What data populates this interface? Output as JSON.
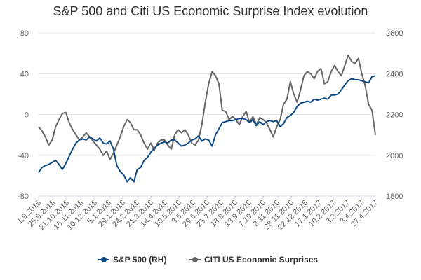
{
  "chart_data": {
    "type": "line",
    "title": "S&P 500 and Citi US Economic Surprise Index evolution",
    "x_tick_labels": [
      "1.9.2015",
      "25.9.2015",
      "21.10.2015",
      "16.11.2015",
      "10.12.2015",
      "5.1.2016",
      "29.1.2016",
      "24.2.2016",
      "21.3.2016",
      "14.4.2016",
      "10.5.2016",
      "3.6.2016",
      "29.6.2016",
      "25.7.2016",
      "18.8.2016",
      "13.9.2016",
      "7.10.2016",
      "2.11.2016",
      "28.11.2016",
      "22.12.2016",
      "17.1.2017",
      "10.2.2017",
      "8.3.2017",
      "3.4.2017",
      "27.4.2017"
    ],
    "y_left_ticks": [
      80,
      40,
      0,
      -40,
      -80
    ],
    "y_left_lim": [
      -80,
      80
    ],
    "y_right_ticks": [
      2600,
      2400,
      2200,
      2000,
      1800
    ],
    "y_right_lim": [
      1800,
      2600
    ],
    "grid": "horizontal",
    "legend_position": "bottom",
    "series": [
      {
        "name": "S&P 500 (RH)",
        "axis": "right",
        "color": "#0d4a85",
        "values": [
          1915,
          1940,
          1950,
          1955,
          1965,
          1975,
          1955,
          1930,
          1960,
          1995,
          2030,
          2060,
          2075,
          2080,
          2075,
          2090,
          2080,
          2070,
          2085,
          2060,
          2055,
          2070,
          2030,
          1950,
          1920,
          1905,
          1870,
          1890,
          1870,
          1930,
          1940,
          1975,
          1990,
          2015,
          2035,
          2050,
          2060,
          2065,
          2060,
          2075,
          2075,
          2060,
          2045,
          2050,
          2060,
          2075,
          2080,
          2095,
          2070,
          2080,
          2075,
          2045,
          2100,
          2130,
          2160,
          2165,
          2170,
          2170,
          2175,
          2180,
          2180,
          2175,
          2160,
          2175,
          2145,
          2165,
          2150,
          2165,
          2170,
          2165,
          2170,
          2140,
          2155,
          2185,
          2195,
          2210,
          2240,
          2255,
          2260,
          2265,
          2260,
          2275,
          2270,
          2275,
          2280,
          2275,
          2295,
          2295,
          2300,
          2320,
          2345,
          2365,
          2375,
          2370,
          2370,
          2365,
          2360,
          2355,
          2385,
          2390
        ]
      },
      {
        "name": "CITI US Economic Surprises",
        "axis": "left",
        "color": "#666666",
        "values": [
          -12,
          -16,
          -22,
          -30,
          -25,
          -12,
          -5,
          1,
          2,
          -8,
          -15,
          -20,
          -25,
          -22,
          -18,
          -22,
          -26,
          -30,
          -34,
          -40,
          -36,
          -44,
          -38,
          -30,
          -22,
          -12,
          -5,
          -8,
          -15,
          -15,
          -20,
          -28,
          -34,
          -28,
          -35,
          -28,
          -25,
          -25,
          -30,
          -34,
          -20,
          -15,
          -18,
          -15,
          -20,
          -28,
          -30,
          -25,
          -10,
          12,
          30,
          42,
          38,
          30,
          4,
          3,
          -5,
          -2,
          -5,
          -10,
          -2,
          3,
          -8,
          -2,
          -10,
          -3,
          -5,
          -8,
          -15,
          -22,
          -12,
          -5,
          10,
          15,
          32,
          20,
          12,
          24,
          38,
          42,
          40,
          35,
          42,
          45,
          30,
          32,
          42,
          48,
          42,
          38,
          48,
          58,
          52,
          50,
          55,
          40,
          28,
          10,
          4,
          -20
        ]
      }
    ],
    "legend": [
      "S&P 500 (RH)",
      "CITI US Economic Surprises"
    ]
  }
}
